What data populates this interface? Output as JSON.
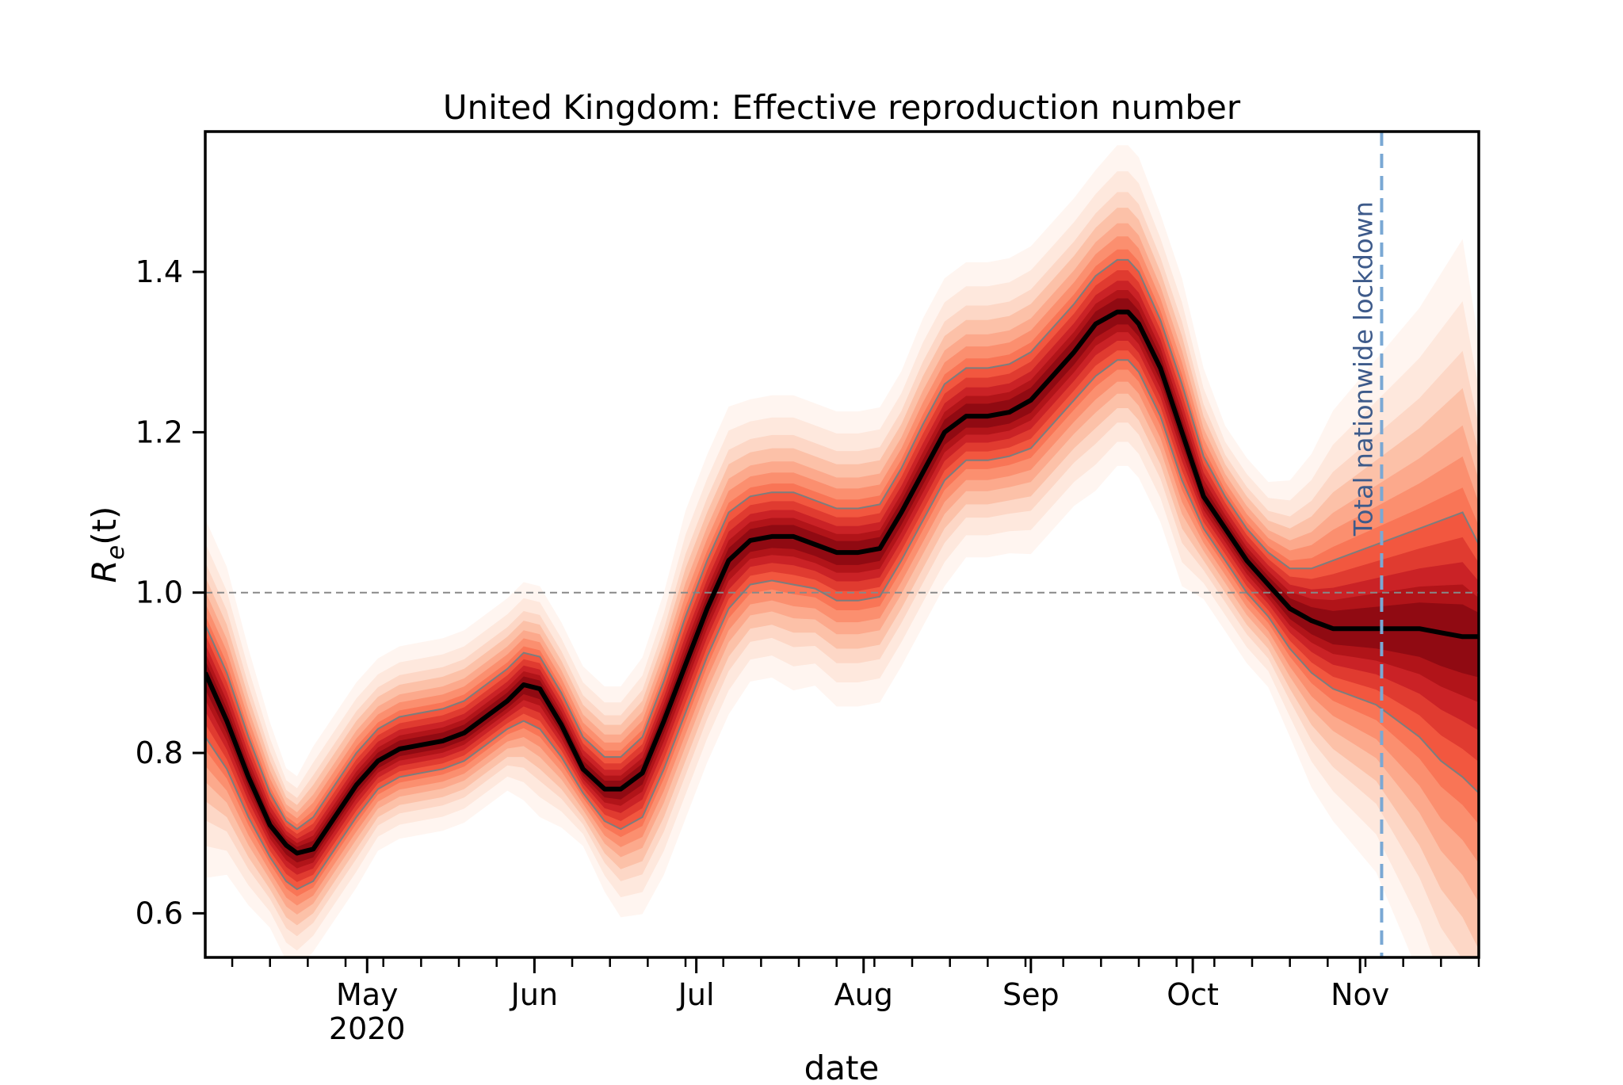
{
  "chart_data": {
    "type": "line",
    "title": "United Kingdom: Effective reproduction number",
    "xlabel": "date",
    "ylabel_base": "R",
    "ylabel_sub": "e",
    "ylabel_arg": "(t)",
    "x_range": [
      "2020-04-01",
      "2020-11-23"
    ],
    "ylim": [
      0.545,
      1.575
    ],
    "yticks": [
      0.6,
      0.8,
      1.0,
      1.2,
      1.4
    ],
    "ytick_labels": [
      "0.6",
      "0.8",
      "1.0",
      "1.2",
      "1.4"
    ],
    "xticks": [
      {
        "date": "2020-05-01",
        "label": "May",
        "sublabel": "2020"
      },
      {
        "date": "2020-06-01",
        "label": "Jun"
      },
      {
        "date": "2020-07-01",
        "label": "Jul"
      },
      {
        "date": "2020-08-01",
        "label": "Aug"
      },
      {
        "date": "2020-09-01",
        "label": "Sep"
      },
      {
        "date": "2020-10-01",
        "label": "Oct"
      },
      {
        "date": "2020-11-01",
        "label": "Nov"
      }
    ],
    "reference_line": {
      "y": 1.0,
      "style": "dashed",
      "color": "#888888"
    },
    "event": {
      "date": "2020-11-05",
      "label": "Total nationwide lockdown",
      "color": "#7aa8d4"
    },
    "series": [
      {
        "role": "median",
        "x": [
          "2020-04-01",
          "2020-04-05",
          "2020-04-09",
          "2020-04-13",
          "2020-04-16",
          "2020-04-18",
          "2020-04-21",
          "2020-04-25",
          "2020-04-29",
          "2020-05-03",
          "2020-05-07",
          "2020-05-11",
          "2020-05-15",
          "2020-05-19",
          "2020-05-23",
          "2020-05-27",
          "2020-05-30",
          "2020-06-02",
          "2020-06-06",
          "2020-06-10",
          "2020-06-14",
          "2020-06-17",
          "2020-06-21",
          "2020-06-25",
          "2020-06-29",
          "2020-07-03",
          "2020-07-07",
          "2020-07-11",
          "2020-07-15",
          "2020-07-19",
          "2020-07-23",
          "2020-07-27",
          "2020-07-31",
          "2020-08-04",
          "2020-08-08",
          "2020-08-12",
          "2020-08-16",
          "2020-08-20",
          "2020-08-24",
          "2020-08-28",
          "2020-09-01",
          "2020-09-05",
          "2020-09-09",
          "2020-09-13",
          "2020-09-17",
          "2020-09-19",
          "2020-09-21",
          "2020-09-25",
          "2020-09-29",
          "2020-10-03",
          "2020-10-07",
          "2020-10-11",
          "2020-10-15",
          "2020-10-19",
          "2020-10-23",
          "2020-10-27",
          "2020-10-31",
          "2020-11-04",
          "2020-11-08",
          "2020-11-12",
          "2020-11-16",
          "2020-11-20",
          "2020-11-23"
        ],
        "y": [
          0.9,
          0.84,
          0.77,
          0.71,
          0.685,
          0.675,
          0.68,
          0.72,
          0.76,
          0.79,
          0.805,
          0.81,
          0.815,
          0.825,
          0.845,
          0.865,
          0.885,
          0.88,
          0.835,
          0.78,
          0.755,
          0.755,
          0.775,
          0.84,
          0.91,
          0.98,
          1.04,
          1.065,
          1.07,
          1.07,
          1.06,
          1.05,
          1.05,
          1.055,
          1.1,
          1.15,
          1.2,
          1.22,
          1.22,
          1.225,
          1.24,
          1.27,
          1.3,
          1.335,
          1.35,
          1.35,
          1.335,
          1.28,
          1.2,
          1.12,
          1.08,
          1.04,
          1.01,
          0.98,
          0.965,
          0.955,
          0.955,
          0.955,
          0.955,
          0.955,
          0.95,
          0.945,
          0.945
        ]
      },
      {
        "role": "lower",
        "x": [
          "2020-04-01",
          "2020-04-05",
          "2020-04-09",
          "2020-04-13",
          "2020-04-16",
          "2020-04-18",
          "2020-04-21",
          "2020-04-25",
          "2020-04-29",
          "2020-05-03",
          "2020-05-07",
          "2020-05-11",
          "2020-05-15",
          "2020-05-19",
          "2020-05-23",
          "2020-05-27",
          "2020-05-30",
          "2020-06-02",
          "2020-06-06",
          "2020-06-10",
          "2020-06-14",
          "2020-06-17",
          "2020-06-21",
          "2020-06-25",
          "2020-06-29",
          "2020-07-03",
          "2020-07-07",
          "2020-07-11",
          "2020-07-15",
          "2020-07-19",
          "2020-07-23",
          "2020-07-27",
          "2020-07-31",
          "2020-08-04",
          "2020-08-08",
          "2020-08-12",
          "2020-08-16",
          "2020-08-20",
          "2020-08-24",
          "2020-08-28",
          "2020-09-01",
          "2020-09-05",
          "2020-09-09",
          "2020-09-13",
          "2020-09-17",
          "2020-09-19",
          "2020-09-21",
          "2020-09-25",
          "2020-09-29",
          "2020-10-03",
          "2020-10-07",
          "2020-10-11",
          "2020-10-15",
          "2020-10-19",
          "2020-10-23",
          "2020-10-27",
          "2020-10-31",
          "2020-11-04",
          "2020-11-08",
          "2020-11-12",
          "2020-11-16",
          "2020-11-20",
          "2020-11-23"
        ],
        "y": [
          0.82,
          0.78,
          0.72,
          0.67,
          0.64,
          0.63,
          0.64,
          0.68,
          0.72,
          0.755,
          0.77,
          0.775,
          0.78,
          0.79,
          0.81,
          0.83,
          0.84,
          0.83,
          0.795,
          0.75,
          0.715,
          0.705,
          0.72,
          0.78,
          0.85,
          0.92,
          0.98,
          1.01,
          1.015,
          1.01,
          1.005,
          0.99,
          0.99,
          0.995,
          1.04,
          1.09,
          1.14,
          1.165,
          1.165,
          1.17,
          1.18,
          1.21,
          1.24,
          1.27,
          1.29,
          1.29,
          1.275,
          1.22,
          1.14,
          1.08,
          1.04,
          1.0,
          0.97,
          0.93,
          0.9,
          0.88,
          0.87,
          0.86,
          0.84,
          0.82,
          0.79,
          0.77,
          0.75
        ]
      },
      {
        "role": "upper",
        "x": [
          "2020-04-01",
          "2020-04-05",
          "2020-04-09",
          "2020-04-13",
          "2020-04-16",
          "2020-04-18",
          "2020-04-21",
          "2020-04-25",
          "2020-04-29",
          "2020-05-03",
          "2020-05-07",
          "2020-05-11",
          "2020-05-15",
          "2020-05-19",
          "2020-05-23",
          "2020-05-27",
          "2020-05-30",
          "2020-06-02",
          "2020-06-06",
          "2020-06-10",
          "2020-06-14",
          "2020-06-17",
          "2020-06-21",
          "2020-06-25",
          "2020-06-29",
          "2020-07-03",
          "2020-07-07",
          "2020-07-11",
          "2020-07-15",
          "2020-07-19",
          "2020-07-23",
          "2020-07-27",
          "2020-07-31",
          "2020-08-04",
          "2020-08-08",
          "2020-08-12",
          "2020-08-16",
          "2020-08-20",
          "2020-08-24",
          "2020-08-28",
          "2020-09-01",
          "2020-09-05",
          "2020-09-09",
          "2020-09-13",
          "2020-09-17",
          "2020-09-19",
          "2020-09-21",
          "2020-09-25",
          "2020-09-29",
          "2020-10-03",
          "2020-10-07",
          "2020-10-11",
          "2020-10-15",
          "2020-10-19",
          "2020-10-23",
          "2020-10-27",
          "2020-10-31",
          "2020-11-04",
          "2020-11-08",
          "2020-11-12",
          "2020-11-16",
          "2020-11-20",
          "2020-11-23"
        ],
        "y": [
          0.96,
          0.9,
          0.82,
          0.75,
          0.715,
          0.705,
          0.72,
          0.76,
          0.8,
          0.83,
          0.845,
          0.85,
          0.855,
          0.865,
          0.885,
          0.905,
          0.925,
          0.92,
          0.875,
          0.82,
          0.795,
          0.795,
          0.82,
          0.89,
          0.97,
          1.04,
          1.1,
          1.12,
          1.125,
          1.125,
          1.115,
          1.105,
          1.105,
          1.11,
          1.155,
          1.21,
          1.26,
          1.28,
          1.28,
          1.285,
          1.3,
          1.33,
          1.36,
          1.395,
          1.415,
          1.415,
          1.4,
          1.34,
          1.26,
          1.17,
          1.12,
          1.08,
          1.05,
          1.03,
          1.03,
          1.04,
          1.05,
          1.06,
          1.07,
          1.08,
          1.09,
          1.1,
          1.06
        ]
      }
    ]
  }
}
